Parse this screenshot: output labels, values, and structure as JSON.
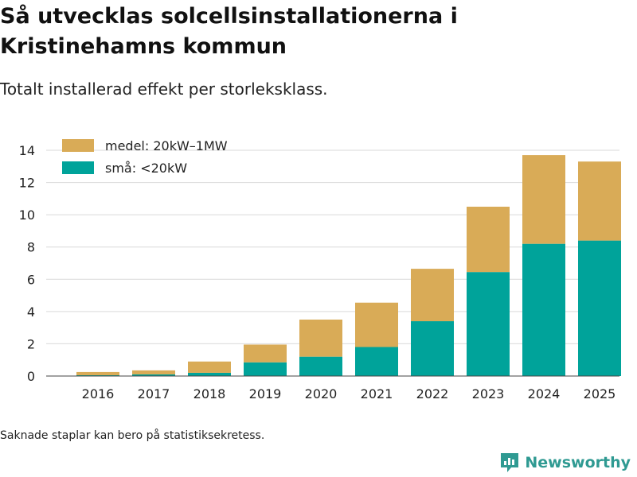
{
  "header": {
    "title": "Så utvecklas solcellsinstallationerna i Kristinehamns kommun",
    "subtitle": "Totalt installerad effekt per storleksklass."
  },
  "footer": {
    "note": "Saknade staplar kan bero på statistiksekretess.",
    "brand": "Newsworthy"
  },
  "colors": {
    "small": "#00a39a",
    "medium": "#d9ab57",
    "grid": "#d9d9d9",
    "brand": "#2f9a92"
  },
  "chart_data": {
    "type": "bar",
    "stacked": true,
    "categories": [
      "2016",
      "2017",
      "2018",
      "2019",
      "2020",
      "2021",
      "2022",
      "2023",
      "2024",
      "2025"
    ],
    "series": [
      {
        "name": "små: <20kW",
        "color": "#00a39a",
        "values": [
          0.05,
          0.1,
          0.2,
          0.85,
          1.2,
          1.8,
          3.4,
          6.45,
          8.2,
          8.4
        ]
      },
      {
        "name": "medel: 20kW–1MW",
        "color": "#d9ab57",
        "values": [
          0.2,
          0.25,
          0.7,
          1.1,
          2.3,
          2.75,
          3.25,
          4.05,
          5.5,
          4.9
        ]
      }
    ],
    "title": "Så utvecklas solcellsinstallationerna i Kristinehamns kommun",
    "xlabel": "",
    "ylabel": "",
    "ylim": [
      0,
      14
    ],
    "yticks": [
      0,
      2,
      4,
      6,
      8,
      10,
      12,
      14
    ],
    "grid": true,
    "legend_position": "top-left"
  }
}
